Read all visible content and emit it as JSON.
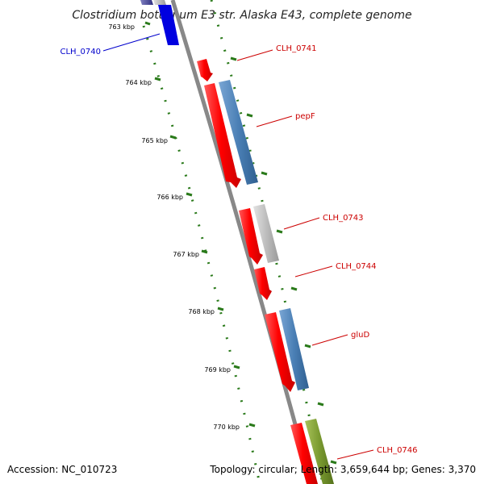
{
  "title": "Clostridium botulinum E3 str. Alaska E43, complete genome",
  "footer": {
    "accession": "Accession: NC_010723",
    "summary": "Topology: circular; Length: 3,659,644 bp; Genes: 3,370"
  },
  "tick_labels": [
    "763 kbp",
    "764 kbp",
    "765 kbp",
    "766 kbp",
    "767 kbp",
    "768 kbp",
    "769 kbp",
    "770 kbp"
  ],
  "genes": [
    {
      "name": "CLH_0740",
      "color": "#0000cc",
      "side": "left"
    },
    {
      "name": "CLH_0741",
      "color": "#cc0000",
      "side": "right"
    },
    {
      "name": "pepF",
      "color": "#cc0000",
      "side": "right"
    },
    {
      "name": "CLH_0743",
      "color": "#cc0000",
      "side": "right"
    },
    {
      "name": "CLH_0744",
      "color": "#cc0000",
      "side": "right"
    },
    {
      "name": "gluD",
      "color": "#cc0000",
      "side": "right"
    },
    {
      "name": "CLH_0746",
      "color": "#cc0000",
      "side": "right"
    }
  ],
  "colors": {
    "cds_forward": "#ff0000",
    "feature_blue": "#4a7fb5",
    "feature_gray": "#b5b5b5",
    "feature_green": "#7a9a30",
    "feature_darkblue": "#0000e0",
    "backbone": "#888888",
    "ticks": "#2a7a1a"
  }
}
